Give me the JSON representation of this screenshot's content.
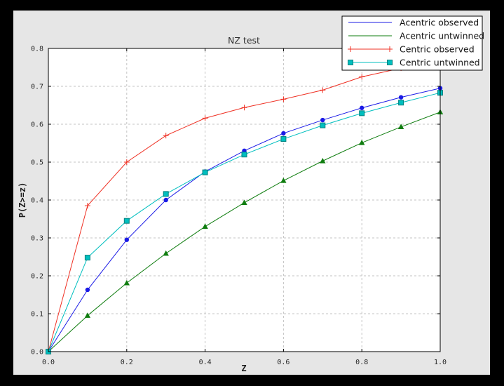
{
  "colors": {
    "background": "#000000",
    "figure": "#e6e6e6",
    "plot": "#ffffff",
    "grid": "#c3c3c3",
    "spine": "#000000",
    "legend_bg": "#ffffff",
    "legend_border": "#000000"
  },
  "chart_data": {
    "type": "line",
    "title": "NZ test",
    "xlabel": "Z",
    "ylabel": "P(Z>=z)",
    "xlim": [
      0.0,
      1.0
    ],
    "ylim": [
      0.0,
      0.8
    ],
    "xticks": [
      0.0,
      0.2,
      0.4,
      0.6,
      0.8,
      1.0
    ],
    "xtick_labels": [
      "0.0",
      "0.2",
      "0.4",
      "0.6",
      "0.8",
      "1.0"
    ],
    "yticks": [
      0.0,
      0.1,
      0.2,
      0.3,
      0.4,
      0.5,
      0.6,
      0.7,
      0.8
    ],
    "ytick_labels": [
      "0.0",
      "0.1",
      "0.2",
      "0.3",
      "0.4",
      "0.5",
      "0.6",
      "0.7",
      "0.8"
    ],
    "xgrid": [
      0.2,
      0.4,
      0.6,
      0.8
    ],
    "ygrid": [
      0.1,
      0.2,
      0.3,
      0.4,
      0.5,
      0.6,
      0.7
    ],
    "grid": true,
    "legend_position": "upper right",
    "x": [
      0.0,
      0.1,
      0.2,
      0.3,
      0.4,
      0.5,
      0.6,
      0.7,
      0.8,
      0.9,
      1.0
    ],
    "series": [
      {
        "name": "Acentric observed",
        "color": "#1a1ae6",
        "marker": "circle",
        "legend_marker_ends": false,
        "values": [
          0.0,
          0.163,
          0.295,
          0.4,
          0.475,
          0.53,
          0.576,
          0.611,
          0.643,
          0.671,
          0.695
        ]
      },
      {
        "name": "Acentric untwinned",
        "color": "#0f7d0f",
        "marker": "triangle",
        "legend_marker_ends": false,
        "values": [
          0.0,
          0.095,
          0.181,
          0.259,
          0.33,
          0.393,
          0.451,
          0.503,
          0.551,
          0.593,
          0.632
        ]
      },
      {
        "name": "Centric observed",
        "color": "#ef3023",
        "marker": "plus",
        "legend_marker_ends": true,
        "values": [
          0.0,
          0.385,
          0.5,
          0.57,
          0.616,
          0.644,
          0.666,
          0.69,
          0.725,
          0.748,
          0.768
        ]
      },
      {
        "name": "Centric untwinned",
        "color": "#00bfbf",
        "marker": "square",
        "marker_edge": "#00807d",
        "legend_marker_ends": true,
        "values": [
          0.0,
          0.248,
          0.345,
          0.416,
          0.473,
          0.52,
          0.561,
          0.597,
          0.629,
          0.657,
          0.683
        ]
      }
    ]
  }
}
